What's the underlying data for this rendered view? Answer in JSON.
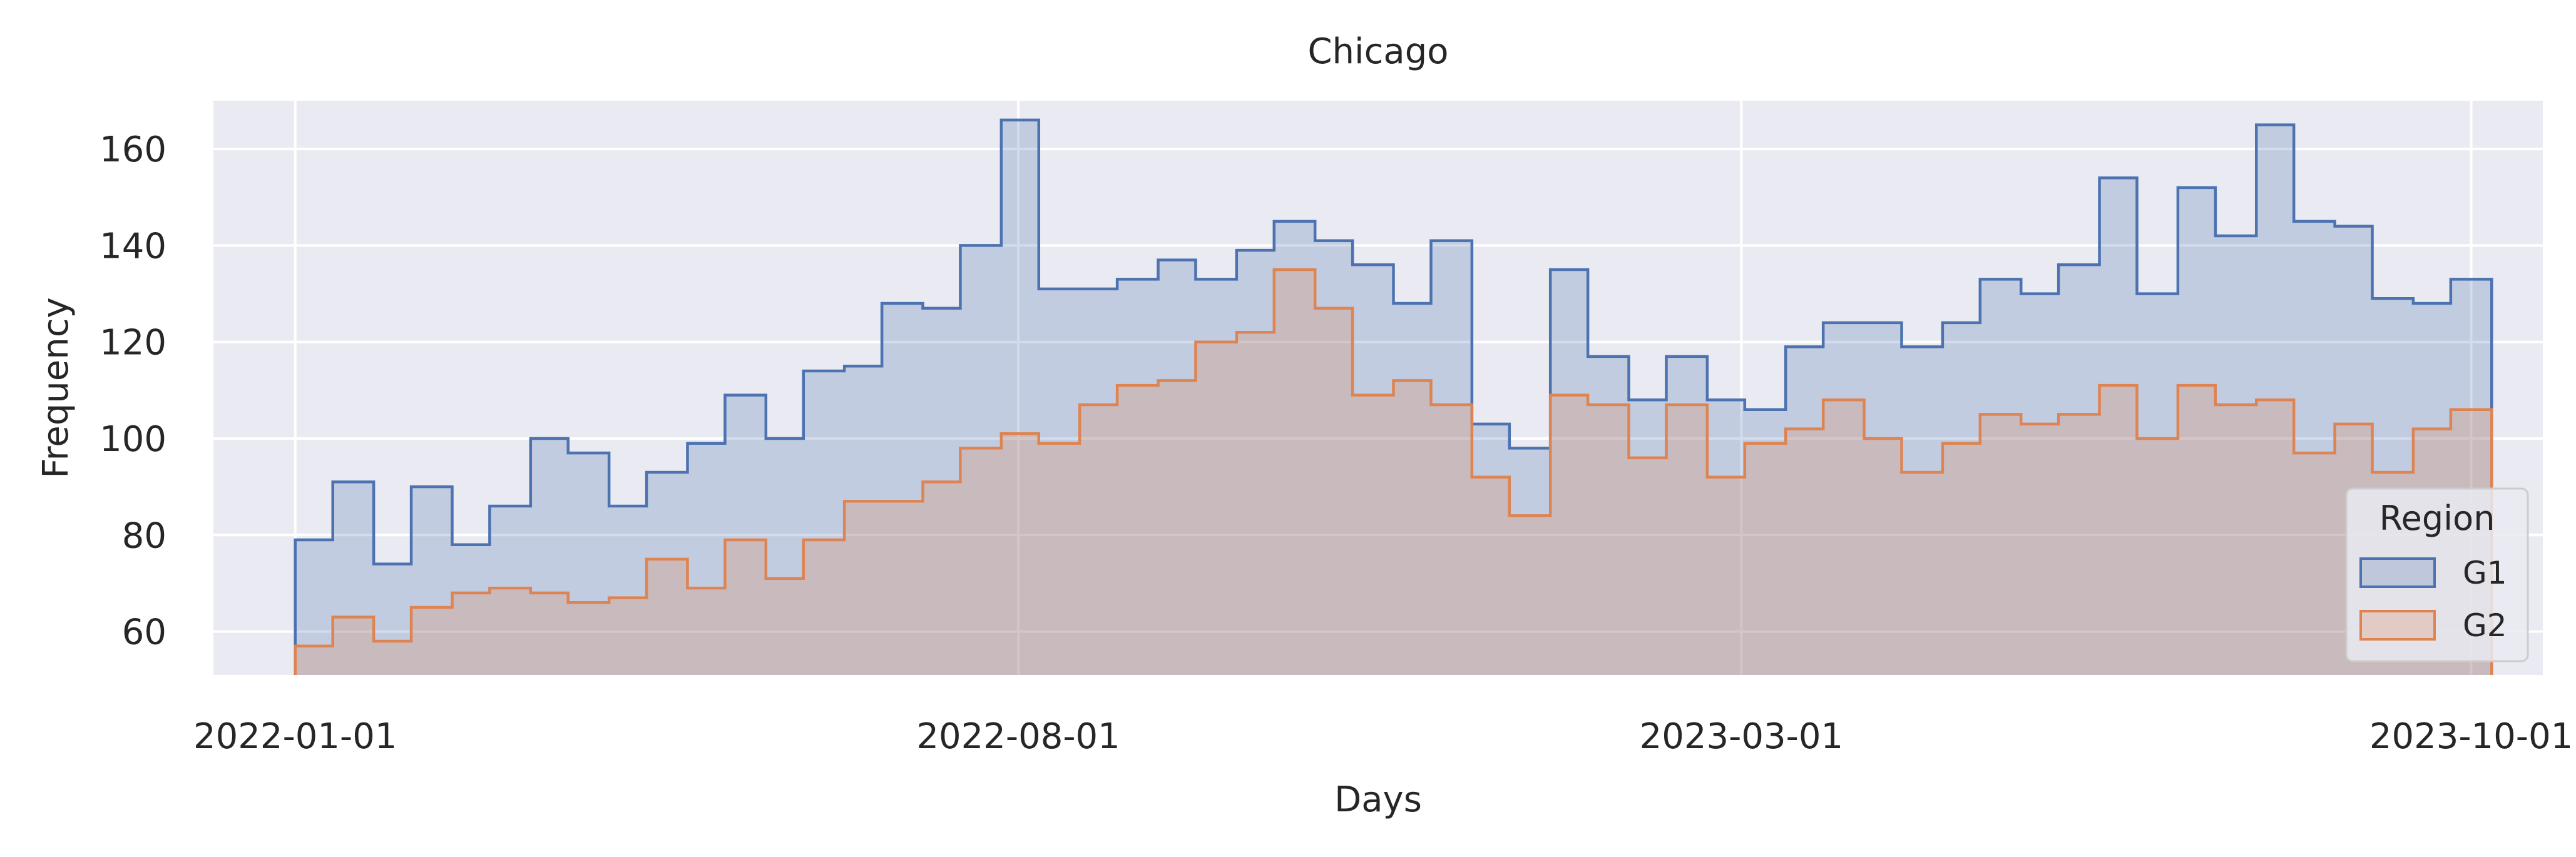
{
  "chart_data": {
    "type": "area",
    "step": true,
    "title": "Chicago",
    "xlabel": "Days",
    "ylabel": "Frequency",
    "x_ticks": [
      "2022-01-01",
      "2022-08-01",
      "2023-03-01",
      "2023-10-01"
    ],
    "x_tick_dates": [
      "2022-01-01",
      "2022-08-01",
      "2023-03-01",
      "2023-10-01"
    ],
    "y_ticks": [
      60,
      80,
      100,
      120,
      140,
      160
    ],
    "ylim": [
      51,
      170
    ],
    "xlim": [
      "2021-12-08",
      "2023-10-22"
    ],
    "grid": true,
    "legend": {
      "title": "Region",
      "position": "lower right"
    },
    "bin_edges": [
      "2022-01-01",
      "2022-01-12",
      "2022-01-24",
      "2022-02-04",
      "2022-02-16",
      "2022-02-27",
      "2022-03-11",
      "2022-03-22",
      "2022-04-03",
      "2022-04-14",
      "2022-04-26",
      "2022-05-07",
      "2022-05-19",
      "2022-05-30",
      "2022-06-11",
      "2022-06-22",
      "2022-07-04",
      "2022-07-15",
      "2022-07-27",
      "2022-08-07",
      "2022-08-19",
      "2022-08-30",
      "2022-09-11",
      "2022-09-22",
      "2022-10-04",
      "2022-10-15",
      "2022-10-27",
      "2022-11-07",
      "2022-11-19",
      "2022-11-30",
      "2022-12-12",
      "2022-12-23",
      "2023-01-04",
      "2023-01-15",
      "2023-01-27",
      "2023-02-07",
      "2023-02-19",
      "2023-03-02",
      "2023-03-14",
      "2023-03-25",
      "2023-04-06",
      "2023-04-17",
      "2023-04-29",
      "2023-05-10",
      "2023-05-22",
      "2023-06-02",
      "2023-06-14",
      "2023-06-25",
      "2023-07-07",
      "2023-07-18",
      "2023-07-30",
      "2023-08-10",
      "2023-08-22",
      "2023-09-02",
      "2023-09-14",
      "2023-09-25",
      "2023-10-07"
    ],
    "series": [
      {
        "name": "G1",
        "color": "#4c72b0",
        "values": [
          79,
          91,
          74,
          90,
          78,
          86,
          100,
          97,
          86,
          93,
          99,
          109,
          100,
          114,
          115,
          128,
          127,
          140,
          166,
          131,
          131,
          133,
          137,
          133,
          139,
          145,
          141,
          136,
          128,
          141,
          103,
          98,
          135,
          117,
          108,
          117,
          108,
          106,
          119,
          124,
          124,
          119,
          124,
          133,
          130,
          136,
          154,
          130,
          152,
          142,
          165,
          145,
          144,
          129,
          128,
          133
        ]
      },
      {
        "name": "G2",
        "color": "#dd8452",
        "values": [
          57,
          63,
          58,
          65,
          68,
          69,
          68,
          66,
          67,
          75,
          69,
          79,
          71,
          79,
          87,
          87,
          91,
          98,
          101,
          99,
          107,
          111,
          112,
          120,
          122,
          135,
          127,
          109,
          112,
          107,
          92,
          84,
          109,
          107,
          96,
          107,
          92,
          99,
          102,
          108,
          100,
          93,
          99,
          105,
          103,
          105,
          111,
          100,
          111,
          107,
          108,
          97,
          103,
          93,
          102,
          106
        ]
      }
    ]
  }
}
